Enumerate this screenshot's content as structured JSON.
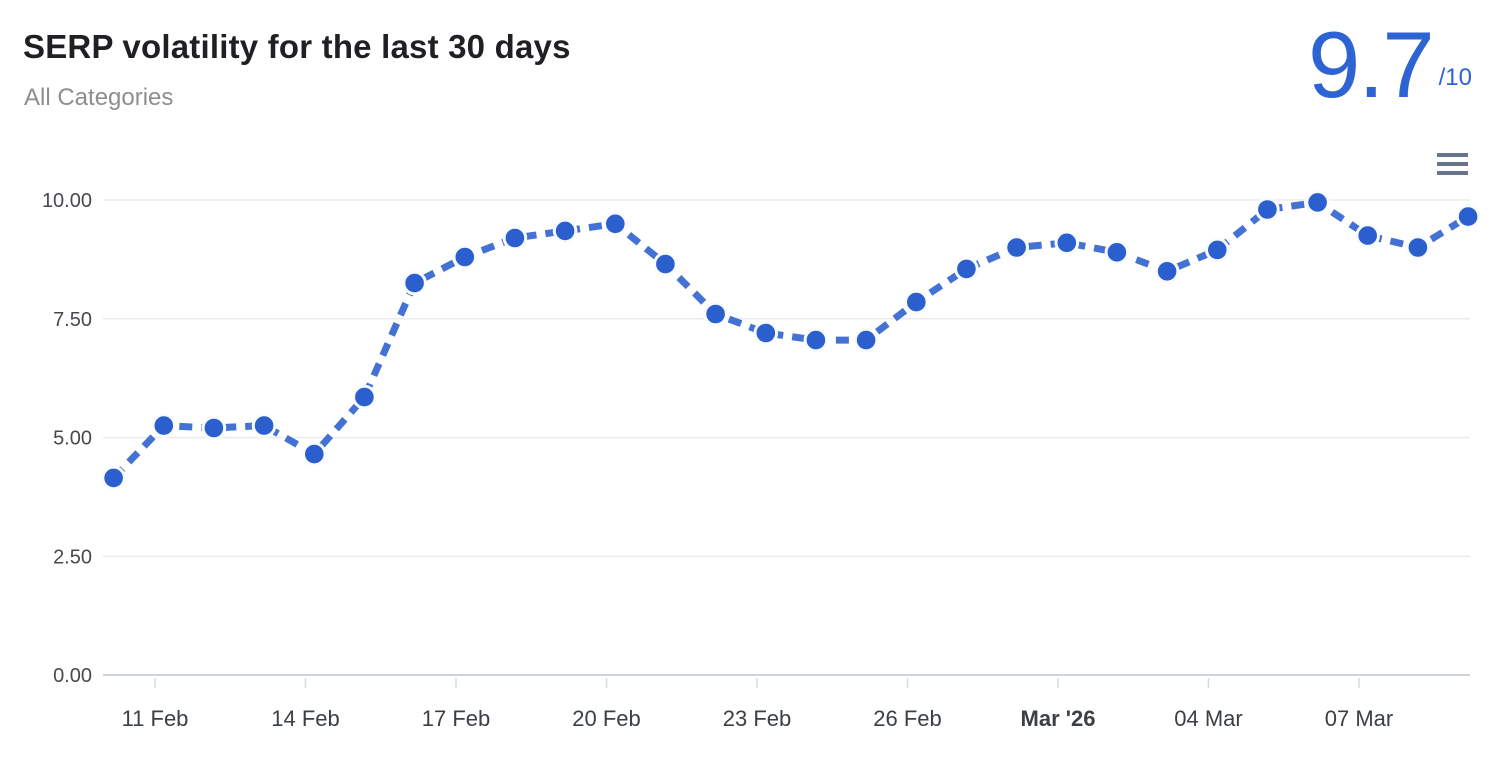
{
  "header": {
    "title": "SERP volatility for the last 30 days",
    "subtitle": "All Categories",
    "score_value": "9.7",
    "score_suffix": "/10"
  },
  "menu": {
    "icon": "hamburger-menu-icon"
  },
  "colors": {
    "score_blue": "#2d63d3",
    "line_blue": "#4472d4",
    "marker_blue": "#2b5fce",
    "marker_halo": "#fafbfd",
    "gridline": "#e9ebed",
    "axis_line": "#ced3d8",
    "tick": "#d9dcdf",
    "y_label": "#46494e",
    "x_label": "#3b4045",
    "title_text": "#1f2023",
    "subtitle_text": "#8d8e90",
    "menu_icon": "#67758a"
  },
  "chart_data": {
    "type": "line",
    "title": "SERP volatility for the last 30 days",
    "subtitle": "All Categories",
    "legend": "none",
    "grid": "horizontal-only",
    "line_style": "dashed",
    "marker": "circle",
    "ylim": [
      0,
      10
    ],
    "y_axis": {
      "ticks": [
        "10.00",
        "7.50",
        "5.00",
        "2.50",
        "0.00"
      ],
      "tick_values": [
        10,
        7.5,
        5,
        2.5,
        0
      ]
    },
    "x_axis": {
      "ticks": [
        {
          "label": "11 Feb",
          "bold": false
        },
        {
          "label": "14 Feb",
          "bold": false
        },
        {
          "label": "17 Feb",
          "bold": false
        },
        {
          "label": "20 Feb",
          "bold": false
        },
        {
          "label": "23 Feb",
          "bold": false
        },
        {
          "label": "26 Feb",
          "bold": false
        },
        {
          "label": "Mar '26",
          "bold": true
        },
        {
          "label": "04 Mar",
          "bold": false
        },
        {
          "label": "07 Mar",
          "bold": false
        }
      ]
    },
    "x": [
      "10 Feb",
      "11 Feb",
      "12 Feb",
      "13 Feb",
      "14 Feb",
      "15 Feb",
      "16 Feb",
      "17 Feb",
      "18 Feb",
      "19 Feb",
      "20 Feb",
      "21 Feb",
      "22 Feb",
      "23 Feb",
      "24 Feb",
      "25 Feb",
      "26 Feb",
      "27 Feb",
      "28 Feb",
      "01 Mar",
      "02 Mar",
      "03 Mar",
      "04 Mar",
      "05 Mar",
      "06 Mar",
      "07 Mar",
      "08 Mar",
      "09 Mar"
    ],
    "series": [
      {
        "name": "SERP volatility",
        "values": [
          4.15,
          5.25,
          5.2,
          5.25,
          4.65,
          5.85,
          8.25,
          8.8,
          9.2,
          9.35,
          9.5,
          8.65,
          7.6,
          7.2,
          7.05,
          7.05,
          7.85,
          8.55,
          9.0,
          9.1,
          8.9,
          8.5,
          8.95,
          9.8,
          9.95,
          9.25,
          9.0,
          9.65
        ]
      }
    ],
    "current_score": 9.7,
    "score_max": 10
  }
}
